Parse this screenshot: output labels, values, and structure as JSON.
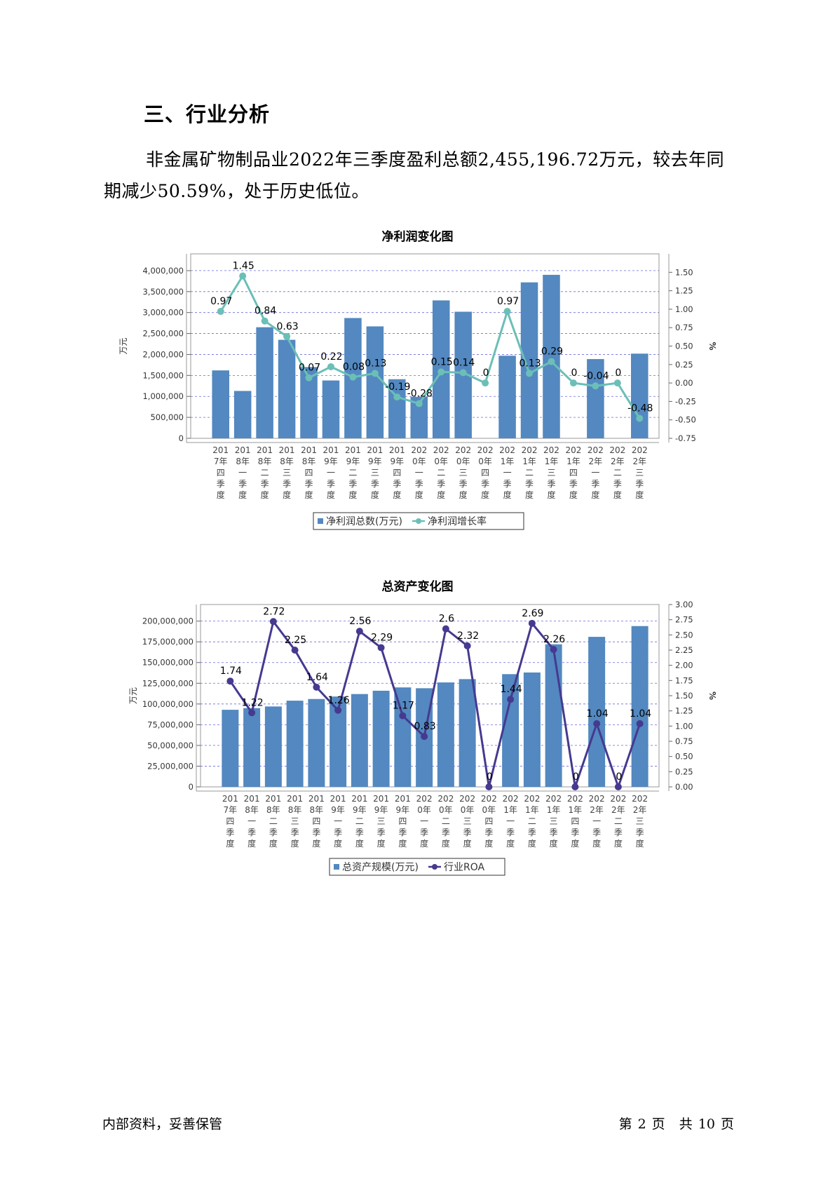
{
  "section": {
    "title": "三、行业分析"
  },
  "paragraph": {
    "text": "非金属矿物制品业2022年三季度盈利总额2,455,196.72万元，较去年同期减少50.59%，处于历史低位。"
  },
  "chart_data": [
    {
      "type": "bar+line",
      "title": "净利润变化图",
      "categories": [
        "2017年四季度",
        "2018年一季度",
        "2018年二季度",
        "2018年三季度",
        "2018年四季度",
        "2019年一季度",
        "2019年二季度",
        "2019年三季度",
        "2019年四季度",
        "2020年一季度",
        "2020年二季度",
        "2020年三季度",
        "2020年四季度",
        "2021年一季度",
        "2021年二季度",
        "2021年三季度",
        "2021年四季度",
        "2022年一季度",
        "2022年二季度",
        "2022年三季度"
      ],
      "category_label_lines": [
        [
          "201",
          "7年",
          "四",
          "季",
          "度"
        ],
        [
          "201",
          "8年",
          "一",
          "季",
          "度"
        ],
        [
          "201",
          "8年",
          "二",
          "季",
          "度"
        ],
        [
          "201",
          "8年",
          "三",
          "季",
          "度"
        ],
        [
          "201",
          "8年",
          "四",
          "季",
          "度"
        ],
        [
          "201",
          "9年",
          "一",
          "季",
          "度"
        ],
        [
          "201",
          "9年",
          "二",
          "季",
          "度"
        ],
        [
          "201",
          "9年",
          "三",
          "季",
          "度"
        ],
        [
          "201",
          "9年",
          "四",
          "季",
          "度"
        ],
        [
          "202",
          "0年",
          "一",
          "季",
          "度"
        ],
        [
          "202",
          "0年",
          "二",
          "季",
          "度"
        ],
        [
          "202",
          "0年",
          "三",
          "季",
          "度"
        ],
        [
          "202",
          "0年",
          "四",
          "季",
          "度"
        ],
        [
          "202",
          "1年",
          "一",
          "季",
          "度"
        ],
        [
          "202",
          "1年",
          "二",
          "季",
          "度"
        ],
        [
          "202",
          "1年",
          "三",
          "季",
          "度"
        ],
        [
          "202",
          "1年",
          "四",
          "季",
          "度"
        ],
        [
          "202",
          "2年",
          "一",
          "季",
          "度"
        ],
        [
          "202",
          "2年",
          "二",
          "季",
          "度"
        ],
        [
          "202",
          "2年",
          "三",
          "季",
          "度"
        ]
      ],
      "ylabel": "万元",
      "y2label": "%",
      "ylim": [
        0,
        4400000
      ],
      "y_ticks": [
        0,
        500000,
        1000000,
        1500000,
        2000000,
        2500000,
        3000000,
        3500000,
        4000000
      ],
      "y_tick_labels": [
        "0",
        "500,000",
        "1,000,000",
        "1,500,000",
        "2,000,000",
        "2,500,000",
        "3,000,000",
        "3,500,000",
        "4,000,000"
      ],
      "y2lim": [
        -0.75,
        1.75
      ],
      "y2_ticks": [
        -0.75,
        -0.5,
        -0.25,
        0,
        0.25,
        0.5,
        0.75,
        1.0,
        1.25,
        1.5
      ],
      "y2_tick_labels": [
        "-0.75",
        "-0.50",
        "-0.25",
        "0.00",
        "0.25",
        "0.50",
        "0.75",
        "1.00",
        "1.25",
        "1.50"
      ],
      "bar_series": {
        "name": "净利润总数(万元)",
        "color": "#5388c0",
        "values": [
          1620000,
          1130000,
          2650000,
          2350000,
          1700000,
          1380000,
          2870000,
          2670000,
          1410000,
          990000,
          3290000,
          3020000,
          0,
          1970000,
          3720000,
          3900000,
          0,
          1890000,
          0,
          2020000
        ]
      },
      "line_series": {
        "name": "净利润增长率",
        "color": "#6bbfb7",
        "values": [
          0.97,
          1.45,
          0.84,
          0.63,
          0.07,
          0.22,
          0.08,
          0.13,
          -0.19,
          -0.28,
          0.15,
          0.14,
          0,
          0.97,
          0.13,
          0.29,
          0,
          -0.04,
          0,
          -0.48
        ],
        "labels": [
          "0.97",
          "1.45",
          "0.84",
          "0.63",
          "0.07",
          "0.22",
          "0.08",
          "0.13",
          "-0.19",
          "-0.28",
          "0.15",
          "0.14",
          "0",
          "0.97",
          "0.13",
          "0.29",
          "0",
          "-0.04",
          "0",
          "-0.48"
        ]
      },
      "grid": true,
      "legend": "bottom"
    },
    {
      "type": "bar+line",
      "title": "总资产变化图",
      "categories": [
        "2017年四季度",
        "2018年一季度",
        "2018年二季度",
        "2018年三季度",
        "2018年四季度",
        "2019年一季度",
        "2019年二季度",
        "2019年三季度",
        "2019年四季度",
        "2020年一季度",
        "2020年二季度",
        "2020年三季度",
        "2020年四季度",
        "2021年一季度",
        "2021年二季度",
        "2021年三季度",
        "2021年四季度",
        "2022年一季度",
        "2022年二季度",
        "2022年三季度"
      ],
      "category_label_lines": [
        [
          "201",
          "7年",
          "四",
          "季",
          "度"
        ],
        [
          "201",
          "8年",
          "一",
          "季",
          "度"
        ],
        [
          "201",
          "8年",
          "二",
          "季",
          "度"
        ],
        [
          "201",
          "8年",
          "三",
          "季",
          "度"
        ],
        [
          "201",
          "8年",
          "四",
          "季",
          "度"
        ],
        [
          "201",
          "9年",
          "一",
          "季",
          "度"
        ],
        [
          "201",
          "9年",
          "二",
          "季",
          "度"
        ],
        [
          "201",
          "9年",
          "三",
          "季",
          "度"
        ],
        [
          "201",
          "9年",
          "四",
          "季",
          "度"
        ],
        [
          "202",
          "0年",
          "一",
          "季",
          "度"
        ],
        [
          "202",
          "0年",
          "二",
          "季",
          "度"
        ],
        [
          "202",
          "0年",
          "三",
          "季",
          "度"
        ],
        [
          "202",
          "0年",
          "四",
          "季",
          "度"
        ],
        [
          "202",
          "1年",
          "一",
          "季",
          "度"
        ],
        [
          "202",
          "1年",
          "二",
          "季",
          "度"
        ],
        [
          "202",
          "1年",
          "三",
          "季",
          "度"
        ],
        [
          "202",
          "1年",
          "四",
          "季",
          "度"
        ],
        [
          "202",
          "2年",
          "一",
          "季",
          "度"
        ],
        [
          "202",
          "2年",
          "二",
          "季",
          "度"
        ],
        [
          "202",
          "2年",
          "三",
          "季",
          "度"
        ]
      ],
      "ylabel": "万元",
      "y2label": "%",
      "ylim": [
        0,
        220000000
      ],
      "y_ticks": [
        0,
        25000000,
        50000000,
        75000000,
        100000000,
        125000000,
        150000000,
        175000000,
        200000000
      ],
      "y_tick_labels": [
        "0",
        "25,000,000",
        "50,000,000",
        "75,000,000",
        "100,000,000",
        "125,000,000",
        "150,000,000",
        "175,000,000",
        "200,000,000"
      ],
      "y2lim": [
        0,
        3.0
      ],
      "y2_ticks": [
        0,
        0.25,
        0.5,
        0.75,
        1.0,
        1.25,
        1.5,
        1.75,
        2.0,
        2.25,
        2.5,
        2.75,
        3.0
      ],
      "y2_tick_labels": [
        "0.00",
        "0.25",
        "0.50",
        "0.75",
        "1.00",
        "1.25",
        "1.50",
        "1.75",
        "2.00",
        "2.25",
        "2.50",
        "2.75",
        "3.00"
      ],
      "bar_series": {
        "name": "总资产规模(万元)",
        "color": "#5388c0",
        "values": [
          93000000,
          95000000,
          97000000,
          104000000,
          106000000,
          109000000,
          112000000,
          116000000,
          120000000,
          119000000,
          126000000,
          130000000,
          0,
          136000000,
          138000000,
          172000000,
          0,
          181000000,
          0,
          194000000
        ]
      },
      "line_series": {
        "name": "行业ROA",
        "color": "#453a8f",
        "values": [
          1.74,
          1.22,
          2.72,
          2.25,
          1.64,
          1.26,
          2.56,
          2.29,
          1.17,
          0.83,
          2.6,
          2.32,
          0,
          1.44,
          2.69,
          2.26,
          0,
          1.04,
          0,
          1.04
        ],
        "labels": [
          "1.74",
          "1.22",
          "2.72",
          "2.25",
          "1.64",
          "1.26",
          "2.56",
          "2.29",
          "1.17",
          "0.83",
          "2.6",
          "2.32",
          "0",
          "1.44",
          "2.69",
          "2.26",
          "0",
          "1.04",
          "0",
          "1.04"
        ]
      },
      "grid": true,
      "legend": "bottom"
    }
  ],
  "footer": {
    "left": "内部资料，妥善保管",
    "page_prefix": "第",
    "page_num": "2",
    "page_unit": "页",
    "total_prefix": "共",
    "total_num": "10",
    "total_unit": "页"
  }
}
